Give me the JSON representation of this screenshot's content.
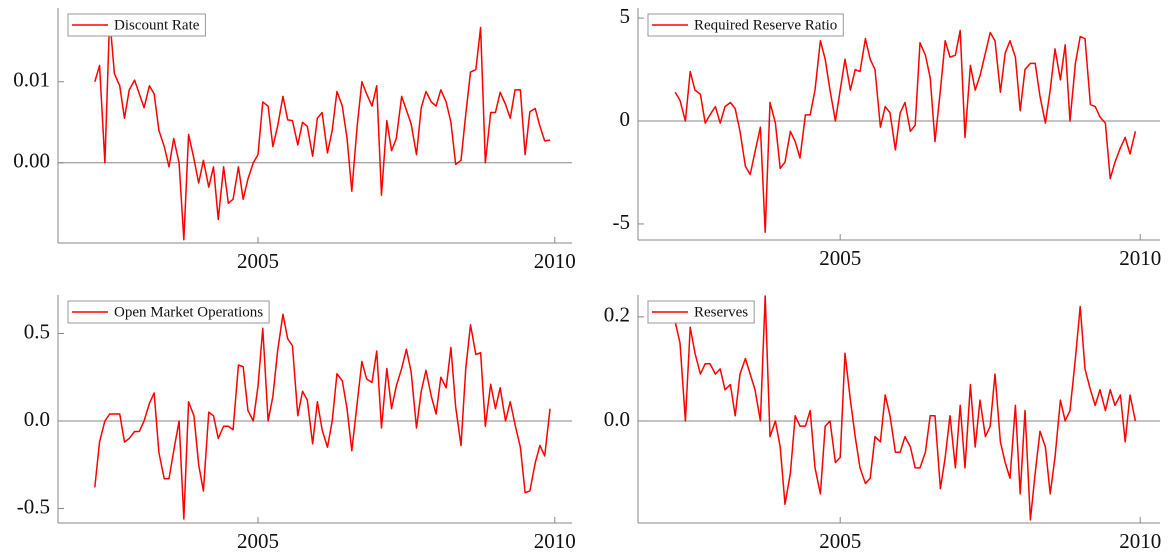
{
  "chart_data": [
    {
      "type": "line",
      "legend": "upper left",
      "zero_line": true,
      "x": [
        2002.25,
        2002.33,
        2002.42,
        2002.5,
        2002.58,
        2002.67,
        2002.75,
        2002.83,
        2002.92,
        2003,
        2003.08,
        2003.17,
        2003.25,
        2003.33,
        2003.42,
        2003.5,
        2003.58,
        2003.67,
        2003.75,
        2003.83,
        2003.92,
        2004,
        2004.08,
        2004.17,
        2004.25,
        2004.33,
        2004.42,
        2004.5,
        2004.58,
        2004.67,
        2004.75,
        2004.83,
        2004.92,
        2005,
        2005.08,
        2005.17,
        2005.25,
        2005.33,
        2005.42,
        2005.5,
        2005.58,
        2005.67,
        2005.75,
        2005.83,
        2005.92,
        2006,
        2006.08,
        2006.17,
        2006.25,
        2006.33,
        2006.42,
        2006.5,
        2006.58,
        2006.67,
        2006.75,
        2006.83,
        2006.92,
        2007,
        2007.08,
        2007.17,
        2007.25,
        2007.33,
        2007.42,
        2007.5,
        2007.58,
        2007.67,
        2007.75,
        2007.83,
        2007.92,
        2008,
        2008.08,
        2008.17,
        2008.25,
        2008.33,
        2008.42,
        2008.5,
        2008.58,
        2008.67,
        2008.75,
        2008.83,
        2008.92,
        2009,
        2009.08,
        2009.17,
        2009.25,
        2009.33,
        2009.42,
        2009.5,
        2009.58,
        2009.67,
        2009.75,
        2009.83,
        2009.92
      ],
      "series": [
        {
          "name": "Discount Rate",
          "color": "#ff0000",
          "values": [
            0.01,
            0.012,
            0.0,
            0.018,
            0.011,
            0.0095,
            0.0055,
            0.009,
            0.0102,
            0.0085,
            0.0068,
            0.0095,
            0.0085,
            0.004,
            0.002,
            -0.0005,
            0.003,
            0.0,
            -0.0095,
            0.0035,
            0.0005,
            -0.0025,
            0.0003,
            -0.003,
            -0.0005,
            -0.007,
            -0.0005,
            -0.005,
            -0.0045,
            -0.0005,
            -0.0045,
            -0.002,
            0.0,
            0.001,
            0.0075,
            0.007,
            0.002,
            0.0045,
            0.0082,
            0.0053,
            0.0052,
            0.0022,
            0.005,
            0.0045,
            0.0008,
            0.0055,
            0.0062,
            0.0012,
            0.004,
            0.0088,
            0.007,
            0.003,
            -0.0035,
            0.0045,
            0.01,
            0.0085,
            0.007,
            0.0095,
            -0.004,
            0.0052,
            0.0015,
            0.003,
            0.0082,
            0.0065,
            0.0048,
            0.001,
            0.0068,
            0.0088,
            0.0075,
            0.007,
            0.009,
            0.0075,
            0.005,
            -0.0002,
            0.0003,
            0.006,
            0.0112,
            0.0115,
            0.0167,
            0.0,
            0.0062,
            0.0062,
            0.0087,
            0.0072,
            0.0055,
            0.009,
            0.009,
            0.001,
            0.0063,
            0.0067,
            0.0045,
            0.0027,
            0.0028
          ]
        }
      ],
      "xlim": [
        2001.63,
        2010.29
      ],
      "xticks": [
        2005,
        2010
      ],
      "ylim": [
        -0.0099,
        0.0191
      ],
      "yticks": [
        {
          "value": 0,
          "label": "0.00"
        },
        0.01
      ]
    },
    {
      "type": "line",
      "legend": "upper left",
      "zero_line": true,
      "x": [
        2002.25,
        2002.33,
        2002.42,
        2002.5,
        2002.58,
        2002.67,
        2002.75,
        2002.83,
        2002.92,
        2003,
        2003.08,
        2003.17,
        2003.25,
        2003.33,
        2003.42,
        2003.5,
        2003.58,
        2003.67,
        2003.75,
        2003.83,
        2003.92,
        2004,
        2004.08,
        2004.17,
        2004.25,
        2004.33,
        2004.42,
        2004.5,
        2004.58,
        2004.67,
        2004.75,
        2004.83,
        2004.92,
        2005,
        2005.08,
        2005.17,
        2005.25,
        2005.33,
        2005.42,
        2005.5,
        2005.58,
        2005.67,
        2005.75,
        2005.83,
        2005.92,
        2006,
        2006.08,
        2006.17,
        2006.25,
        2006.33,
        2006.42,
        2006.5,
        2006.58,
        2006.67,
        2006.75,
        2006.83,
        2006.92,
        2007,
        2007.08,
        2007.17,
        2007.25,
        2007.33,
        2007.42,
        2007.5,
        2007.58,
        2007.67,
        2007.75,
        2007.83,
        2007.92,
        2008,
        2008.08,
        2008.17,
        2008.25,
        2008.33,
        2008.42,
        2008.5,
        2008.58,
        2008.67,
        2008.75,
        2008.83,
        2008.92,
        2009,
        2009.08,
        2009.17,
        2009.25,
        2009.33,
        2009.42,
        2009.5,
        2009.58,
        2009.67,
        2009.75,
        2009.83,
        2009.92
      ],
      "series": [
        {
          "name": "Required Reserve Ratio",
          "color": "#ff0000",
          "values": [
            1.4,
            1.0,
            0.0,
            2.4,
            1.5,
            1.3,
            -0.1,
            0.3,
            0.7,
            -0.1,
            0.7,
            0.9,
            0.6,
            -0.5,
            -2.2,
            -2.6,
            -1.5,
            -0.3,
            -5.4,
            0.9,
            -0.1,
            -2.3,
            -2.0,
            -0.5,
            -1.0,
            -1.8,
            0.3,
            0.3,
            1.5,
            3.9,
            3.0,
            1.5,
            0.0,
            1.5,
            3.0,
            1.5,
            2.5,
            2.4,
            4.0,
            3.0,
            2.5,
            -0.3,
            0.7,
            0.4,
            -1.4,
            0.4,
            0.9,
            -0.5,
            -0.2,
            3.8,
            3.2,
            2.1,
            -1.0,
            1.5,
            3.9,
            3.1,
            3.2,
            4.4,
            -0.8,
            2.7,
            1.5,
            2.2,
            3.3,
            4.3,
            3.9,
            1.4,
            3.3,
            3.9,
            3.1,
            0.5,
            2.5,
            2.8,
            2.8,
            1.2,
            -0.1,
            1.5,
            3.5,
            2.0,
            3.7,
            0.0,
            2.8,
            4.1,
            4.0,
            0.8,
            0.7,
            0.2,
            -0.1,
            -2.8,
            -2.0,
            -1.3,
            -0.8,
            -1.6,
            -0.5
          ]
        }
      ],
      "xlim": [
        2001.63,
        2010.33
      ],
      "xticks": [
        2005,
        2010
      ],
      "ylim": [
        -5.78,
        5.49
      ],
      "yticks": [
        -5,
        0,
        5
      ]
    },
    {
      "type": "line",
      "legend": "upper left",
      "zero_line": true,
      "x": [
        2002.25,
        2002.33,
        2002.42,
        2002.5,
        2002.58,
        2002.67,
        2002.75,
        2002.83,
        2002.92,
        2003,
        2003.08,
        2003.17,
        2003.25,
        2003.33,
        2003.42,
        2003.5,
        2003.58,
        2003.67,
        2003.75,
        2003.83,
        2003.92,
        2004,
        2004.08,
        2004.17,
        2004.25,
        2004.33,
        2004.42,
        2004.5,
        2004.58,
        2004.67,
        2004.75,
        2004.83,
        2004.92,
        2005,
        2005.08,
        2005.17,
        2005.25,
        2005.33,
        2005.42,
        2005.5,
        2005.58,
        2005.67,
        2005.75,
        2005.83,
        2005.92,
        2006,
        2006.08,
        2006.17,
        2006.25,
        2006.33,
        2006.42,
        2006.5,
        2006.58,
        2006.67,
        2006.75,
        2006.83,
        2006.92,
        2007,
        2007.08,
        2007.17,
        2007.25,
        2007.33,
        2007.42,
        2007.5,
        2007.58,
        2007.67,
        2007.75,
        2007.83,
        2007.92,
        2008,
        2008.08,
        2008.17,
        2008.25,
        2008.33,
        2008.42,
        2008.5,
        2008.58,
        2008.67,
        2008.75,
        2008.83,
        2008.92,
        2009,
        2009.08,
        2009.17,
        2009.25,
        2009.33,
        2009.42,
        2009.5,
        2009.58,
        2009.67,
        2009.75,
        2009.83,
        2009.92
      ],
      "series": [
        {
          "name": "Open Market Operations",
          "color": "#ff0000",
          "values": [
            -0.38,
            -0.12,
            0.0,
            0.04,
            0.04,
            0.04,
            -0.12,
            -0.1,
            -0.06,
            -0.06,
            0.0,
            0.1,
            0.16,
            -0.18,
            -0.33,
            -0.33,
            -0.17,
            0.0,
            -0.56,
            0.11,
            0.03,
            -0.25,
            -0.4,
            0.05,
            0.03,
            -0.1,
            -0.03,
            -0.03,
            -0.05,
            0.32,
            0.31,
            0.06,
            0.0,
            0.2,
            0.53,
            0.0,
            0.14,
            0.4,
            0.61,
            0.47,
            0.43,
            0.03,
            0.17,
            0.12,
            -0.13,
            0.11,
            -0.05,
            -0.15,
            0.0,
            0.27,
            0.23,
            0.07,
            -0.17,
            0.1,
            0.34,
            0.24,
            0.22,
            0.4,
            -0.04,
            0.3,
            0.07,
            0.2,
            0.3,
            0.41,
            0.28,
            -0.04,
            0.17,
            0.29,
            0.14,
            0.04,
            0.25,
            0.19,
            0.42,
            0.08,
            -0.14,
            0.3,
            0.55,
            0.38,
            0.39,
            -0.03,
            0.21,
            0.07,
            0.19,
            0.0,
            0.11,
            -0.02,
            -0.15,
            -0.41,
            -0.4,
            -0.24,
            -0.14,
            -0.2,
            0.07
          ]
        }
      ],
      "xlim": [
        2001.63,
        2010.29
      ],
      "xticks": [
        2005,
        2010
      ],
      "ylim": [
        -0.583,
        0.72
      ],
      "yticks": [
        -0.5,
        {
          "value": 0,
          "label": "0.0"
        },
        0.5
      ]
    },
    {
      "type": "line",
      "legend": "upper left",
      "zero_line": true,
      "x": [
        2002.25,
        2002.33,
        2002.42,
        2002.5,
        2002.58,
        2002.67,
        2002.75,
        2002.83,
        2002.92,
        2003,
        2003.08,
        2003.17,
        2003.25,
        2003.33,
        2003.42,
        2003.5,
        2003.58,
        2003.67,
        2003.75,
        2003.83,
        2003.92,
        2004,
        2004.08,
        2004.17,
        2004.25,
        2004.33,
        2004.42,
        2004.5,
        2004.58,
        2004.67,
        2004.75,
        2004.83,
        2004.92,
        2005,
        2005.08,
        2005.17,
        2005.25,
        2005.33,
        2005.42,
        2005.5,
        2005.58,
        2005.67,
        2005.75,
        2005.83,
        2005.92,
        2006,
        2006.08,
        2006.17,
        2006.25,
        2006.33,
        2006.42,
        2006.5,
        2006.58,
        2006.67,
        2006.75,
        2006.83,
        2006.92,
        2007,
        2007.08,
        2007.17,
        2007.25,
        2007.33,
        2007.42,
        2007.5,
        2007.58,
        2007.67,
        2007.75,
        2007.83,
        2007.92,
        2008,
        2008.08,
        2008.17,
        2008.25,
        2008.33,
        2008.42,
        2008.5,
        2008.58,
        2008.67,
        2008.75,
        2008.83,
        2008.92,
        2009,
        2009.08,
        2009.17,
        2009.25,
        2009.33,
        2009.42,
        2009.5,
        2009.58,
        2009.67,
        2009.75,
        2009.83,
        2009.92
      ],
      "series": [
        {
          "name": "Reserves",
          "color": "#ff0000",
          "values": [
            0.19,
            0.15,
            0.0,
            0.18,
            0.13,
            0.09,
            0.11,
            0.11,
            0.09,
            0.1,
            0.06,
            0.07,
            0.01,
            0.09,
            0.12,
            0.09,
            0.06,
            0.0,
            0.24,
            -0.03,
            0.0,
            -0.05,
            -0.16,
            -0.1,
            0.01,
            -0.01,
            -0.01,
            0.02,
            -0.09,
            -0.14,
            -0.01,
            0.0,
            -0.08,
            -0.07,
            0.13,
            0.04,
            -0.03,
            -0.09,
            -0.12,
            -0.11,
            -0.03,
            -0.04,
            0.05,
            0.01,
            -0.06,
            -0.06,
            -0.03,
            -0.05,
            -0.09,
            -0.09,
            -0.06,
            0.01,
            0.01,
            -0.13,
            -0.07,
            0.01,
            -0.09,
            0.03,
            -0.09,
            0.07,
            -0.05,
            0.04,
            -0.03,
            -0.01,
            0.09,
            -0.04,
            -0.08,
            -0.11,
            0.03,
            -0.14,
            0.02,
            -0.19,
            -0.1,
            -0.02,
            -0.05,
            -0.14,
            -0.07,
            0.04,
            0.0,
            0.02,
            0.12,
            0.22,
            0.1,
            0.06,
            0.03,
            0.06,
            0.02,
            0.06,
            0.03,
            0.05,
            -0.04,
            0.05,
            0.0
          ]
        }
      ],
      "xlim": [
        2001.63,
        2010.33
      ],
      "xticks": [
        2005,
        2010
      ],
      "ylim": [
        -0.196,
        0.242
      ],
      "yticks": [
        {
          "value": 0,
          "label": "0.0"
        },
        0.2
      ]
    }
  ]
}
